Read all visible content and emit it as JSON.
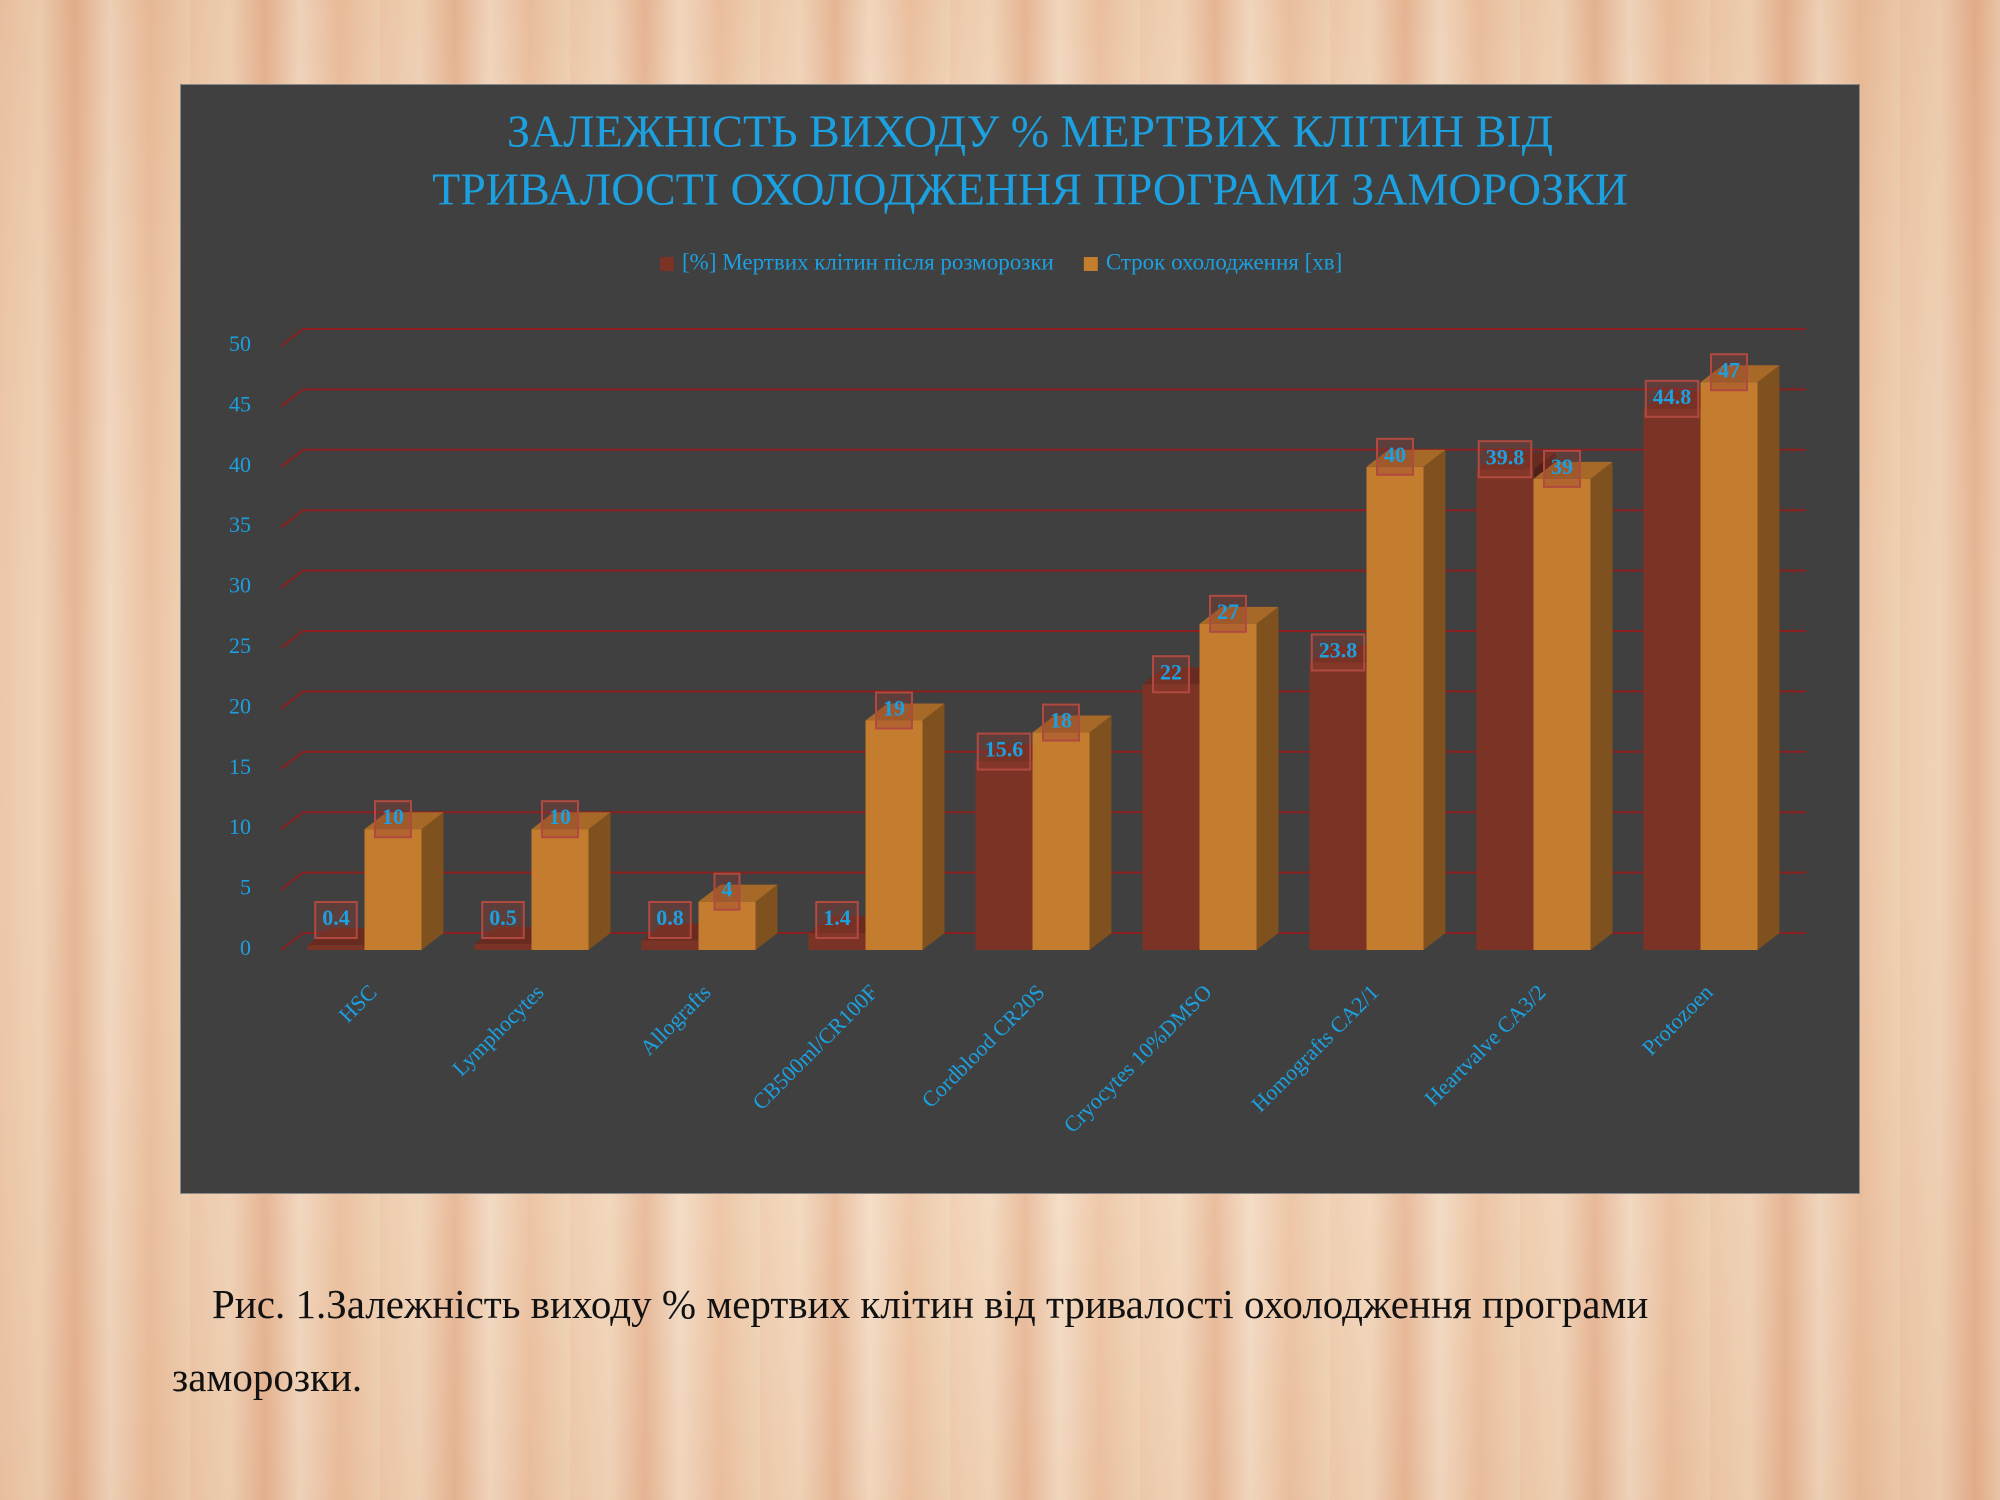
{
  "chart_data": {
    "type": "bar3d",
    "title": [
      "ЗАЛЕЖНІСТЬ ВИХОДУ % МЕРТВИХ КЛІТИН ВІД",
      "ТРИВАЛОСТІ ОХОЛОДЖЕННЯ ПРОГРАМИ ЗАМОРОЗКИ"
    ],
    "categories": [
      "HSC",
      "Lymphocytes",
      "Allografts",
      "CB500ml/CR100F",
      "Cordblood CR20S",
      "Cryocytes 10%DMSO",
      "Homografts CA2/1",
      "Heartvalve CA3/2",
      "Protozoen"
    ],
    "series": [
      {
        "name": "[%] Мертвих клітин після розморозки",
        "color": "#7b3326",
        "values": [
          0.4,
          0.5,
          0.8,
          1.4,
          15.6,
          22,
          23.8,
          39.8,
          44.8
        ]
      },
      {
        "name": "Строк охолодження [хв]",
        "color": "#c47c2f",
        "values": [
          10,
          10,
          4,
          19,
          18,
          27,
          40,
          39,
          47
        ]
      }
    ],
    "ylim": [
      0,
      50
    ],
    "yticks": [
      0,
      5,
      10,
      15,
      20,
      25,
      30,
      35,
      40,
      45,
      50
    ],
    "grid": true,
    "legend": "top"
  },
  "caption": "Рис. 1.Залежність виходу % мертвих клітин від тривалості охолодження програми заморозки."
}
